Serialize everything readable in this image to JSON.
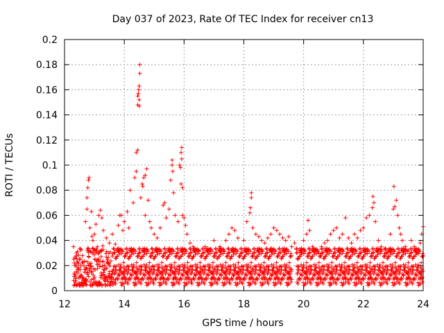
{
  "chart_data": {
    "type": "scatter",
    "title": "Day 037 of 2023, Rate Of TEC Index for receiver cn13",
    "xlabel": "GPS time / hours",
    "ylabel": "ROTI / TECUs",
    "xlim": [
      12,
      24
    ],
    "ylim": [
      0,
      0.2
    ],
    "x_ticks": [
      12,
      14,
      16,
      18,
      20,
      22,
      24
    ],
    "x_tick_labels": [
      "12",
      "14",
      "16",
      "18",
      "20",
      "22",
      "24"
    ],
    "y_ticks": [
      0,
      0.02,
      0.04,
      0.06,
      0.08,
      0.1,
      0.12,
      0.14,
      0.16,
      0.18,
      0.2
    ],
    "y_tick_labels": [
      "0",
      "0.02",
      "0.04",
      "0.06",
      "0.08",
      "0.1",
      "0.12",
      "0.14",
      "0.16",
      "0.18",
      "0.2"
    ],
    "grid": true,
    "marker": "+",
    "color": "#ff0000",
    "series": [
      {
        "name": "ROTI",
        "points": [
          [
            12.3,
            0.035
          ],
          [
            12.35,
            0.02
          ],
          [
            12.4,
            0.03
          ],
          [
            12.45,
            0.018
          ],
          [
            12.5,
            0.025
          ],
          [
            12.55,
            0.033
          ],
          [
            12.6,
            0.028
          ],
          [
            12.7,
            0.055
          ],
          [
            12.75,
            0.065
          ],
          [
            12.75,
            0.074
          ],
          [
            12.78,
            0.082
          ],
          [
            12.8,
            0.088
          ],
          [
            12.82,
            0.09
          ],
          [
            12.85,
            0.05
          ],
          [
            12.9,
            0.063
          ],
          [
            12.95,
            0.04
          ],
          [
            13.0,
            0.045
          ],
          [
            13.05,
            0.053
          ],
          [
            13.1,
            0.035
          ],
          [
            13.15,
            0.06
          ],
          [
            13.2,
            0.064
          ],
          [
            13.25,
            0.058
          ],
          [
            13.3,
            0.048
          ],
          [
            13.4,
            0.042
          ],
          [
            13.5,
            0.038
          ],
          [
            13.6,
            0.045
          ],
          [
            13.7,
            0.037
          ],
          [
            13.8,
            0.052
          ],
          [
            13.85,
            0.06
          ],
          [
            13.9,
            0.06
          ],
          [
            13.95,
            0.048
          ],
          [
            14.0,
            0.055
          ],
          [
            14.1,
            0.063
          ],
          [
            14.15,
            0.05
          ],
          [
            14.2,
            0.08
          ],
          [
            14.3,
            0.07
          ],
          [
            14.35,
            0.09
          ],
          [
            14.4,
            0.095
          ],
          [
            14.4,
            0.11
          ],
          [
            14.45,
            0.112
          ],
          [
            14.45,
            0.148
          ],
          [
            14.45,
            0.155
          ],
          [
            14.47,
            0.157
          ],
          [
            14.48,
            0.16
          ],
          [
            14.5,
            0.152
          ],
          [
            14.5,
            0.147
          ],
          [
            14.5,
            0.163
          ],
          [
            14.52,
            0.173
          ],
          [
            14.52,
            0.18
          ],
          [
            14.55,
            0.074
          ],
          [
            14.6,
            0.085
          ],
          [
            14.62,
            0.083
          ],
          [
            14.65,
            0.09
          ],
          [
            14.7,
            0.092
          ],
          [
            14.75,
            0.097
          ],
          [
            14.7,
            0.06
          ],
          [
            14.8,
            0.072
          ],
          [
            14.85,
            0.055
          ],
          [
            14.9,
            0.05
          ],
          [
            15.0,
            0.045
          ],
          [
            15.1,
            0.042
          ],
          [
            15.2,
            0.05
          ],
          [
            15.3,
            0.068
          ],
          [
            15.35,
            0.07
          ],
          [
            15.4,
            0.058
          ],
          [
            15.5,
            0.065
          ],
          [
            15.55,
            0.088
          ],
          [
            15.6,
            0.104
          ],
          [
            15.6,
            0.1
          ],
          [
            15.62,
            0.095
          ],
          [
            15.65,
            0.078
          ],
          [
            15.7,
            0.06
          ],
          [
            15.8,
            0.055
          ],
          [
            15.85,
            0.1
          ],
          [
            15.88,
            0.098
          ],
          [
            15.9,
            0.11
          ],
          [
            15.92,
            0.114
          ],
          [
            15.92,
            0.105
          ],
          [
            15.9,
            0.085
          ],
          [
            15.95,
            0.082
          ],
          [
            15.95,
            0.06
          ],
          [
            16.0,
            0.058
          ],
          [
            16.05,
            0.052
          ],
          [
            16.1,
            0.045
          ],
          [
            16.2,
            0.038
          ],
          [
            16.3,
            0.035
          ],
          [
            16.5,
            0.032
          ],
          [
            16.7,
            0.035
          ],
          [
            16.9,
            0.033
          ],
          [
            17.0,
            0.04
          ],
          [
            17.2,
            0.035
          ],
          [
            17.4,
            0.04
          ],
          [
            17.5,
            0.045
          ],
          [
            17.6,
            0.05
          ],
          [
            17.7,
            0.048
          ],
          [
            17.8,
            0.042
          ],
          [
            18.0,
            0.04
          ],
          [
            18.1,
            0.055
          ],
          [
            18.2,
            0.062
          ],
          [
            18.22,
            0.066
          ],
          [
            18.25,
            0.078
          ],
          [
            18.25,
            0.074
          ],
          [
            18.3,
            0.05
          ],
          [
            18.4,
            0.045
          ],
          [
            18.5,
            0.043
          ],
          [
            18.6,
            0.04
          ],
          [
            18.7,
            0.038
          ],
          [
            18.8,
            0.042
          ],
          [
            18.9,
            0.045
          ],
          [
            19.0,
            0.05
          ],
          [
            19.1,
            0.048
          ],
          [
            19.2,
            0.045
          ],
          [
            19.3,
            0.042
          ],
          [
            19.4,
            0.04
          ],
          [
            19.5,
            0.043
          ],
          [
            19.6,
            0.035
          ],
          [
            19.7,
            0.038
          ],
          [
            19.8,
            0.025
          ],
          [
            19.9,
            0.03
          ],
          [
            20.0,
            0.04
          ],
          [
            20.1,
            0.045
          ],
          [
            20.15,
            0.056
          ],
          [
            20.2,
            0.048
          ],
          [
            20.3,
            0.035
          ],
          [
            20.4,
            0.032
          ],
          [
            20.5,
            0.03
          ],
          [
            20.6,
            0.035
          ],
          [
            20.7,
            0.038
          ],
          [
            20.8,
            0.04
          ],
          [
            20.9,
            0.045
          ],
          [
            21.0,
            0.048
          ],
          [
            21.1,
            0.05
          ],
          [
            21.2,
            0.042
          ],
          [
            21.3,
            0.045
          ],
          [
            21.4,
            0.058
          ],
          [
            21.5,
            0.042
          ],
          [
            21.6,
            0.038
          ],
          [
            21.7,
            0.045
          ],
          [
            21.8,
            0.042
          ],
          [
            21.9,
            0.048
          ],
          [
            22.0,
            0.05
          ],
          [
            22.1,
            0.058
          ],
          [
            22.2,
            0.06
          ],
          [
            22.3,
            0.066
          ],
          [
            22.32,
            0.075
          ],
          [
            22.35,
            0.07
          ],
          [
            22.4,
            0.055
          ],
          [
            22.5,
            0.04
          ],
          [
            22.6,
            0.035
          ],
          [
            22.7,
            0.033
          ],
          [
            22.8,
            0.03
          ],
          [
            22.9,
            0.045
          ],
          [
            23.0,
            0.065
          ],
          [
            23.02,
            0.083
          ],
          [
            23.05,
            0.067
          ],
          [
            23.1,
            0.072
          ],
          [
            23.15,
            0.06
          ],
          [
            23.2,
            0.05
          ],
          [
            23.25,
            0.045
          ],
          [
            23.3,
            0.04
          ],
          [
            23.4,
            0.035
          ],
          [
            23.5,
            0.032
          ],
          [
            23.6,
            0.04
          ],
          [
            23.7,
            0.035
          ],
          [
            23.8,
            0.03
          ],
          [
            23.9,
            0.038
          ],
          [
            23.95,
            0.045
          ],
          [
            24.0,
            0.051
          ]
        ],
        "note": "Dense background of + markers between 0.005 and ~0.035 from 12.3 h to 24 h with gaps near 19.7 h"
      }
    ],
    "dense_band": {
      "x_start": 12.3,
      "x_end": 24.0,
      "gap": [
        19.6,
        19.75
      ],
      "y_min": 0.004,
      "y_base_max": 0.03
    }
  }
}
